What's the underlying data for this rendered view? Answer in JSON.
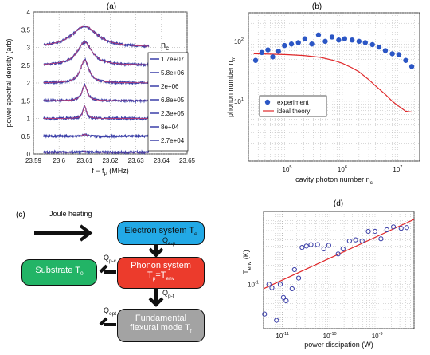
{
  "panel_labels": {
    "a": "(a)",
    "b": "(b)",
    "c": "(c)",
    "d": "(d)"
  },
  "chart_data": [
    {
      "panel": "(a)",
      "type": "line",
      "xlabel": "f − f",
      "xlabel_sub": "P",
      "xlabel_unit": " (MHz)",
      "ylabel": "power spectral density (arb)",
      "xticks": [
        "23.59",
        "23.6",
        "23.61",
        "23.62",
        "23.63",
        "23.64",
        "23.65"
      ],
      "yticks": [
        "0",
        "0.5",
        "1",
        "1.5",
        "2",
        "2.5",
        "3",
        "3.5",
        "4"
      ],
      "xlim": [
        23.59,
        23.65
      ],
      "ylim": [
        0,
        4
      ],
      "center": 23.61,
      "legend_title": "n",
      "legend_title_sub": "c",
      "series": [
        {
          "name": "1.7e+07",
          "offset": 3.0,
          "amplitude": 0.6,
          "width": 0.006
        },
        {
          "name": "5.8e+06",
          "offset": 2.5,
          "amplitude": 0.65,
          "width": 0.0035
        },
        {
          "name": "2e+06",
          "offset": 2.0,
          "amplitude": 0.65,
          "width": 0.002
        },
        {
          "name": "6.8e+05",
          "offset": 1.5,
          "amplitude": 0.45,
          "width": 0.0012
        },
        {
          "name": "2.3e+05",
          "offset": 1.0,
          "amplitude": 0.35,
          "width": 0.0008
        },
        {
          "name": "8e+04",
          "offset": 0.5,
          "amplitude": 0.06,
          "width": 0.0008
        },
        {
          "name": "2.7e+04",
          "offset": 0.05,
          "amplitude": 0.02,
          "width": 0.0008
        }
      ]
    },
    {
      "panel": "(b)",
      "type": "scatter",
      "xlabel": "cavity photon number n",
      "xlabel_sub": "c",
      "ylabel": "phonon number  n",
      "ylabel_sub": "m",
      "xscale": "log",
      "yscale": "log",
      "xlim": [
        20000,
        25000000
      ],
      "ylim": [
        1,
        300
      ],
      "xticks": [
        {
          "v": 100000,
          "t": "10",
          "e": "5"
        },
        {
          "v": 1000000,
          "t": "10",
          "e": "6"
        },
        {
          "v": 10000000,
          "t": "10",
          "e": "7"
        }
      ],
      "yticks": [
        {
          "v": 10,
          "t": "10",
          "e": "1"
        },
        {
          "v": 100,
          "t": "10",
          "e": "2"
        }
      ],
      "legend": [
        "experiment",
        "ideal theory"
      ],
      "legend_position": "bottom-left",
      "experiment": {
        "x": [
          27000,
          35000,
          45000,
          55000,
          70000,
          90000,
          120000,
          160000,
          210000,
          280000,
          370000,
          490000,
          650000,
          860000,
          1100000,
          1500000,
          2000000,
          2600000,
          3500000,
          4600000,
          6000000,
          8000000,
          10500000,
          14000000,
          18000000
        ],
        "y": [
          48,
          65,
          72,
          55,
          68,
          85,
          90,
          95,
          110,
          90,
          128,
          100,
          118,
          105,
          110,
          105,
          100,
          95,
          88,
          80,
          70,
          62,
          60,
          48,
          38
        ]
      },
      "theory": {
        "x": [
          25000,
          50000,
          100000,
          200000,
          400000,
          700000,
          1000000,
          1500000,
          2000000,
          3000000,
          4000000,
          6000000,
          8000000,
          10000000,
          14000000,
          18000000
        ],
        "y": [
          62,
          61,
          60,
          58,
          54,
          48,
          43,
          36,
          31,
          23,
          18,
          13,
          10,
          8.5,
          6.8,
          6.6
        ]
      }
    },
    {
      "panel": "(d)",
      "type": "scatter",
      "xlabel": "power dissipation (W)",
      "ylabel": "T",
      "ylabel_sub": "env",
      "ylabel_unit": " (K)",
      "xscale": "log",
      "yscale": "log",
      "xlim": [
        4e-12,
        6e-09
      ],
      "ylim": [
        0.02,
        1.4
      ],
      "xticks": [
        {
          "v": 1e-11,
          "t": "10",
          "e": "-11"
        },
        {
          "v": 1e-10,
          "t": "10",
          "e": "-10"
        },
        {
          "v": 1e-09,
          "t": "10",
          "e": "-9"
        }
      ],
      "yticks": [
        {
          "v": 0.1,
          "t": "10",
          "e": "-1"
        }
      ],
      "measured": {
        "x": [
          4.2e-12,
          5.2e-12,
          6e-12,
          7.5e-12,
          9e-12,
          1.05e-11,
          1.2e-11,
          1.6e-11,
          1.8e-11,
          2.2e-11,
          2.6e-11,
          3.2e-11,
          4e-11,
          5.5e-11,
          7.5e-11,
          9.5e-11,
          1.5e-10,
          1.9e-10,
          2.6e-10,
          3.5e-10,
          4.8e-10,
          6.5e-10,
          9e-10,
          1.2e-09,
          1.6e-09,
          2.2e-09,
          3.2e-09,
          4.2e-09
        ],
        "y": [
          0.034,
          0.1,
          0.088,
          0.027,
          0.1,
          0.062,
          0.055,
          0.085,
          0.17,
          0.125,
          0.38,
          0.4,
          0.42,
          0.42,
          0.36,
          0.41,
          0.3,
          0.36,
          0.48,
          0.5,
          0.48,
          0.68,
          0.68,
          0.52,
          0.72,
          0.8,
          0.76,
          0.78
        ]
      },
      "fit": {
        "x": [
          4e-12,
          6e-09
        ],
        "y": [
          0.085,
          1.05
        ]
      }
    }
  ],
  "diagram": {
    "joule_heating": "Joule heating",
    "electron_box": "Electron system T",
    "electron_sub": "e",
    "phonon_box_line1": "Phonon system",
    "phonon_box_line2_main": "T",
    "phonon_box_line2_sub": "p",
    "phonon_box_line2_eq": "=T",
    "phonon_box_line2_sub2": "env",
    "substrate_box": "Substrate T",
    "substrate_sub": "0",
    "mode_box_line1": "Fundamental",
    "mode_box_line2": "flexural mode",
    "mode_box_sub_main": "T",
    "mode_box_sub": "f",
    "q_ep": "Q",
    "q_ep_sub": "e-p",
    "q_pc": "Q",
    "q_pc_sub": "p-c",
    "q_pf": "Q",
    "q_pf_sub": "p-f",
    "q_opt": "Q",
    "q_opt_sub": "opt",
    "colors": {
      "electron": "#22a9e6",
      "phonon": "#ec3b2c",
      "substrate": "#22b466",
      "mode": "#a3a3a3"
    }
  }
}
